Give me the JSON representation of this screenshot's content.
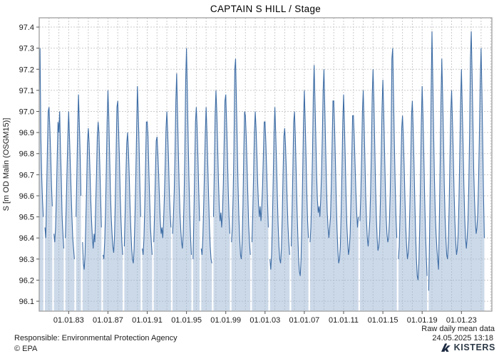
{
  "title": "CAPTAIN S HILL / Stage",
  "footer": {
    "raw_note": "Raw daily mean data",
    "responsible": "Responsible: Environmental Protection Agency",
    "copyright": "© EPA",
    "timestamp": "24.05.2025 13:18",
    "logo_text": "KISTERS"
  },
  "colors": {
    "line": "#3e6da5",
    "fill": "#99b3d4",
    "grid": "#cbcbcb",
    "border": "#a6a6a6",
    "logo": "#1b2940"
  },
  "chart_data": {
    "type": "area",
    "title": "CAPTAIN S HILL / Stage",
    "xlabel": "",
    "ylabel": "S [m OD Malin (OSGM15)]",
    "legend": "none",
    "grid": "dashed, yearly vertical lines and 0.1 m horizontal lines",
    "x_domain_years": [
      1980.0,
      2026.1
    ],
    "y_domain": [
      96.053,
      97.444
    ],
    "y_ticks": [
      96.1,
      96.2,
      96.3,
      96.4,
      96.5,
      96.6,
      96.7,
      96.8,
      96.9,
      97.0,
      97.1,
      97.2,
      97.3,
      97.4
    ],
    "x_major_ticks": [
      {
        "t": 1983,
        "label": "01.01.83"
      },
      {
        "t": 1987,
        "label": "01.01.87"
      },
      {
        "t": 1991,
        "label": "01.01.91"
      },
      {
        "t": 1995,
        "label": "01.01.95"
      },
      {
        "t": 1999,
        "label": "01.01.99"
      },
      {
        "t": 2003,
        "label": "01.01.03"
      },
      {
        "t": 2007,
        "label": "01.01.07"
      },
      {
        "t": 2011,
        "label": "01.01.11"
      },
      {
        "t": 2015,
        "label": "01.01.15"
      },
      {
        "t": 2019,
        "label": "01.01.19"
      },
      {
        "t": 2023,
        "label": "01.01.23"
      }
    ],
    "series_name": "Stage, raw daily mean (estimated monthly resolution; null = data gap)",
    "x_start_year": 1980,
    "points_per_year": 12,
    "values": [
      97.08,
      97.3,
      96.88,
      96.7,
      96.58,
      96.5,
      null,
      96.45,
      96.4,
      96.6,
      96.82,
      97.0,
      97.02,
      96.92,
      96.8,
      96.65,
      96.55,
      null,
      96.42,
      96.38,
      96.45,
      96.6,
      96.78,
      96.95,
      96.9,
      97.0,
      96.82,
      96.68,
      96.5,
      96.42,
      96.35,
      null,
      96.4,
      96.55,
      96.72,
      96.88,
      97.0,
      96.88,
      96.75,
      96.62,
      96.5,
      96.4,
      96.35,
      96.3,
      null,
      96.5,
      96.7,
      96.92,
      97.08,
      96.95,
      96.8,
      96.6,
      null,
      96.38,
      96.28,
      96.25,
      96.32,
      96.48,
      96.65,
      96.85,
      96.92,
      96.85,
      96.72,
      96.58,
      96.48,
      96.4,
      96.35,
      96.42,
      96.38,
      96.55,
      96.7,
      96.88,
      96.95,
      96.9,
      96.75,
      96.6,
      96.45,
      null,
      96.32,
      96.3,
      96.38,
      96.52,
      96.72,
      96.95,
      97.1,
      96.98,
      96.8,
      96.62,
      96.5,
      96.42,
      96.36,
      96.33,
      96.4,
      96.58,
      96.8,
      97.02,
      97.05,
      96.92,
      96.78,
      96.6,
      96.48,
      96.38,
      96.32,
      null,
      96.36,
      96.52,
      96.7,
      96.85,
      96.9,
      96.82,
      96.7,
      96.55,
      96.44,
      96.35,
      96.3,
      96.28,
      96.35,
      96.5,
      96.68,
      96.9,
      97.12,
      97.0,
      96.85,
      96.65,
      96.5,
      null,
      96.35,
      96.32,
      96.4,
      96.55,
      96.75,
      96.95,
      96.95,
      96.88,
      96.72,
      96.58,
      96.45,
      96.38,
      96.32,
      null,
      96.38,
      96.52,
      96.7,
      96.86,
      96.88,
      96.8,
      96.7,
      96.58,
      96.48,
      96.42,
      96.45,
      96.4,
      96.48,
      96.6,
      96.75,
      96.92,
      97.0,
      96.9,
      96.78,
      96.62,
      96.52,
      96.45,
      null,
      96.42,
      96.5,
      96.62,
      96.8,
      97.05,
      97.18,
      97.0,
      96.82,
      96.65,
      96.52,
      96.44,
      96.38,
      96.35,
      96.42,
      96.58,
      96.8,
      97.15,
      97.3,
      97.1,
      96.88,
      96.68,
      96.52,
      96.4,
      96.32,
      null,
      96.3,
      96.5,
      96.72,
      96.95,
      97.02,
      96.92,
      96.78,
      96.62,
      96.48,
      null,
      96.35,
      96.32,
      96.4,
      96.55,
      96.72,
      96.9,
      97.02,
      96.9,
      96.75,
      96.6,
      96.46,
      96.36,
      96.3,
      96.28,
      null,
      96.5,
      96.72,
      96.98,
      97.1,
      97.0,
      96.85,
      96.68,
      96.55,
      96.48,
      96.52,
      96.45,
      96.52,
      96.65,
      96.85,
      97.05,
      97.08,
      96.95,
      96.8,
      96.63,
      96.5,
      96.42,
      null,
      96.38,
      96.45,
      96.6,
      96.82,
      97.2,
      97.25,
      97.05,
      96.85,
      96.65,
      96.5,
      96.4,
      96.32,
      96.3,
      96.38,
      96.55,
      96.8,
      97.0,
      96.98,
      96.88,
      96.74,
      96.6,
      96.46,
      96.38,
      96.32,
      null,
      96.38,
      96.52,
      96.7,
      96.9,
      97.0,
      96.92,
      96.8,
      96.66,
      96.56,
      96.5,
      96.55,
      96.48,
      96.55,
      96.65,
      96.8,
      96.95,
      96.95,
      96.85,
      96.72,
      96.58,
      96.45,
      null,
      96.3,
      96.25,
      96.32,
      96.48,
      96.68,
      96.9,
      97.02,
      96.9,
      96.76,
      96.6,
      96.46,
      96.36,
      96.3,
      96.28,
      96.35,
      96.5,
      96.7,
      96.88,
      96.92,
      96.84,
      96.72,
      96.58,
      96.46,
      96.38,
      96.32,
      null,
      96.36,
      96.52,
      96.72,
      96.95,
      97.0,
      96.88,
      96.72,
      96.55,
      96.42,
      96.3,
      96.24,
      96.22,
      96.3,
      96.48,
      96.7,
      96.95,
      97.1,
      96.96,
      96.8,
      96.62,
      96.48,
      96.4,
      null,
      96.38,
      96.45,
      96.6,
      96.8,
      97.08,
      97.22,
      97.05,
      96.88,
      96.7,
      96.58,
      96.52,
      96.55,
      96.5,
      96.58,
      96.7,
      96.88,
      97.1,
      97.2,
      97.02,
      96.84,
      96.66,
      96.52,
      96.45,
      96.4,
      96.45,
      96.5,
      96.65,
      96.85,
      97.05,
      97.05,
      96.92,
      96.76,
      96.58,
      96.44,
      96.34,
      96.28,
      96.3,
      96.36,
      96.52,
      96.72,
      96.95,
      97.08,
      96.94,
      96.78,
      96.6,
      96.46,
      96.38,
      96.32,
      96.35,
      96.42,
      96.58,
      96.78,
      96.98,
      96.98,
      96.88,
      96.75,
      96.62,
      96.52,
      96.45,
      96.5,
      null,
      96.48,
      96.6,
      96.78,
      97.0,
      97.1,
      96.95,
      96.78,
      96.6,
      96.48,
      96.4,
      96.36,
      96.42,
      96.48,
      96.62,
      96.82,
      97.08,
      97.2,
      97.05,
      96.85,
      96.65,
      96.5,
      96.4,
      96.34,
      96.36,
      96.42,
      96.58,
      96.8,
      97.02,
      97.15,
      97.0,
      96.82,
      96.64,
      96.5,
      96.42,
      96.38,
      96.4,
      96.48,
      96.62,
      96.85,
      97.25,
      97.3,
      97.08,
      96.86,
      96.66,
      96.5,
      96.4,
      null,
      96.3,
      96.36,
      96.52,
      96.72,
      96.92,
      96.98,
      96.88,
      96.74,
      96.58,
      96.45,
      96.36,
      96.3,
      96.33,
      96.4,
      96.55,
      96.75,
      96.98,
      97.05,
      96.92,
      96.76,
      96.58,
      96.42,
      96.3,
      96.22,
      96.2,
      96.28,
      96.45,
      96.68,
      96.95,
      97.12,
      96.98,
      96.8,
      96.6,
      96.44,
      96.32,
      96.22,
      null,
      96.15,
      96.4,
      96.7,
      97.1,
      97.38,
      97.15,
      96.9,
      96.68,
      96.52,
      96.42,
      96.35,
      96.3,
      96.25,
      96.48,
      96.75,
      97.05,
      97.25,
      97.08,
      96.88,
      96.66,
      96.5,
      96.4,
      96.32,
      96.3,
      96.38,
      96.55,
      96.78,
      97.0,
      97.1,
      96.96,
      96.8,
      96.62,
      96.48,
      96.38,
      96.32,
      96.35,
      96.42,
      96.58,
      96.8,
      97.05,
      97.2,
      97.02,
      96.84,
      96.65,
      96.5,
      96.4,
      96.35,
      96.4,
      96.48,
      96.65,
      96.9,
      97.25,
      97.38,
      97.18,
      96.95,
      96.72,
      96.58,
      96.48,
      96.42,
      96.45,
      96.52,
      96.68,
      96.9,
      97.15,
      97.3,
      97.1,
      96.85,
      96.6,
      96.4
    ]
  }
}
